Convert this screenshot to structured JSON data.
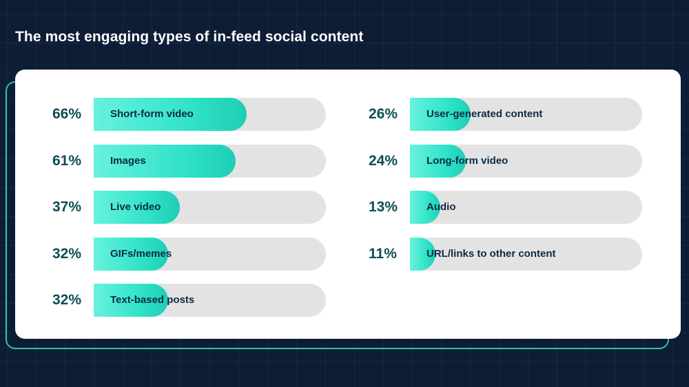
{
  "chart_data": {
    "type": "bar",
    "orientation": "horizontal",
    "title": "The most engaging types of in-feed social content",
    "unit": "%",
    "xlim": [
      0,
      100
    ],
    "left_column": [
      {
        "pct_label": "66%",
        "label": "Short-form video",
        "value": 66
      },
      {
        "pct_label": "61%",
        "label": "Images",
        "value": 61
      },
      {
        "pct_label": "37%",
        "label": "Live video",
        "value": 37
      },
      {
        "pct_label": "32%",
        "label": "GIFs/memes",
        "value": 32
      },
      {
        "pct_label": "32%",
        "label": "Text-based posts",
        "value": 32
      }
    ],
    "right_column": [
      {
        "pct_label": "26%",
        "label": "User-generated content",
        "value": 26
      },
      {
        "pct_label": "24%",
        "label": "Long-form video",
        "value": 24
      },
      {
        "pct_label": "13%",
        "label": "Audio",
        "value": 13
      },
      {
        "pct_label": "11%",
        "label": "URL/links to other content",
        "value": 11
      }
    ]
  },
  "colors": {
    "background": "#0e1d36",
    "bar_fill": "#2fe2c7",
    "bar_track": "#e3e3e3",
    "percent_text": "#0f4d55",
    "label_text": "#0c2a45",
    "accent_outline": "#28c7ac"
  }
}
